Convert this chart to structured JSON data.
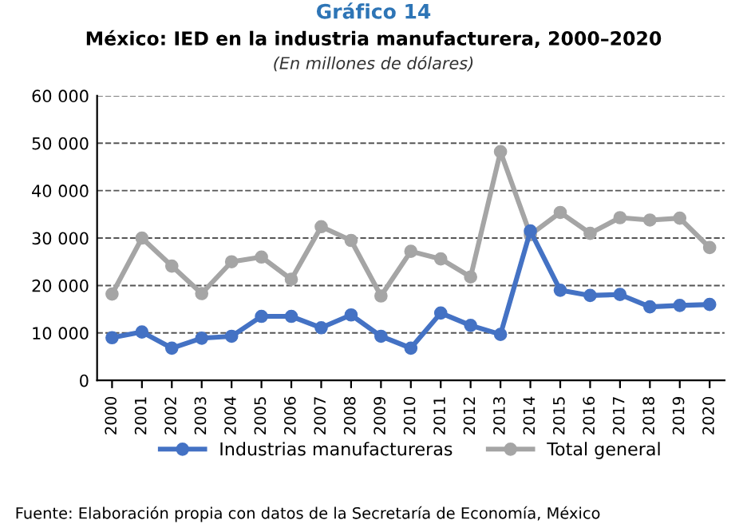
{
  "chart_data": {
    "type": "line",
    "title": "Gráfico 14",
    "subtitle": "México: IED en la industria manufacturera, 2000–2020",
    "annotations": [
      "(En millones de dólares)",
      "Fuente: Elaboración propia con datos de la Secretaría de Economía, México"
    ],
    "categories": [
      "2000",
      "2001",
      "2002",
      "2003",
      "2004",
      "2005",
      "2006",
      "2007",
      "2008",
      "2009",
      "2010",
      "2011",
      "2012",
      "2013",
      "2014",
      "2015",
      "2016",
      "2017",
      "2018",
      "2019",
      "2020"
    ],
    "series": [
      {
        "name": "Industrias manufactureras",
        "color": "#4472c4",
        "values": [
          9000,
          10200,
          6800,
          8900,
          9300,
          13500,
          13500,
          11100,
          13800,
          9300,
          6800,
          14200,
          11600,
          9700,
          31500,
          19000,
          17900,
          18100,
          15500,
          15800,
          16000
        ]
      },
      {
        "name": "Total general",
        "color": "#a5a5a5",
        "values": [
          18200,
          30000,
          24100,
          18300,
          25000,
          26000,
          21300,
          32400,
          29500,
          17800,
          27200,
          25600,
          21800,
          48200,
          30700,
          35400,
          31000,
          34300,
          33800,
          34200,
          28000
        ]
      }
    ],
    "ylim": [
      0,
      60000
    ],
    "yticks": [
      0,
      {
        "value": 10000,
        "label": "10 000"
      },
      {
        "value": 20000,
        "label": "20 000"
      },
      {
        "value": 30000,
        "label": "30 000"
      },
      {
        "value": 40000,
        "label": "40 000"
      },
      {
        "value": 50000,
        "label": "50 000"
      },
      {
        "value": 60000,
        "label": "60 000"
      }
    ],
    "grid": "y",
    "legend": "bottom",
    "marker": "circle",
    "line_style": "solid"
  }
}
